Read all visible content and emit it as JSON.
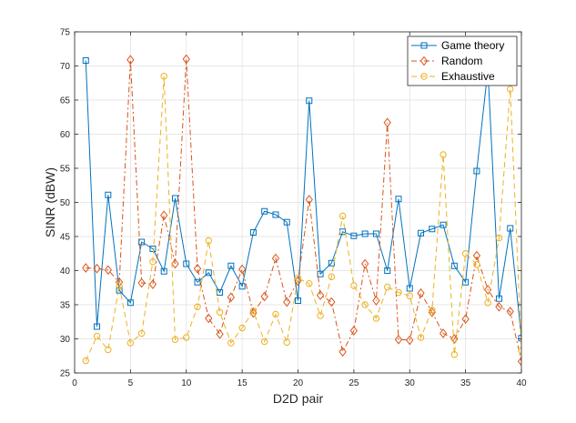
{
  "chart_data": {
    "type": "line",
    "title": "",
    "xlabel": "D2D pair",
    "ylabel": "SINR (dBW)",
    "xlim": [
      0,
      40
    ],
    "ylim": [
      25,
      75
    ],
    "xticks": [
      0,
      5,
      10,
      15,
      20,
      25,
      30,
      35,
      40
    ],
    "yticks": [
      25,
      30,
      35,
      40,
      45,
      50,
      55,
      60,
      65,
      70,
      75
    ],
    "xtick_labels": [
      "0",
      "5",
      "10",
      "15",
      "20",
      "25",
      "30",
      "35",
      "40"
    ],
    "ytick_labels": [
      "25",
      "30",
      "35",
      "40",
      "45",
      "50",
      "55",
      "60",
      "65",
      "70",
      "75"
    ],
    "grid": true,
    "legend_position": "top-right",
    "x": [
      1,
      2,
      3,
      4,
      5,
      6,
      7,
      8,
      9,
      10,
      11,
      12,
      13,
      14,
      15,
      16,
      17,
      18,
      19,
      20,
      21,
      22,
      23,
      24,
      25,
      26,
      27,
      28,
      29,
      30,
      31,
      32,
      33,
      34,
      35,
      36,
      37,
      38,
      39,
      40
    ],
    "series": [
      {
        "name": "Game theory",
        "color": "#0072BD",
        "line_style": "solid",
        "marker": "square",
        "values": [
          70.8,
          31.8,
          51.1,
          37.1,
          35.3,
          44.2,
          43.2,
          39.9,
          50.6,
          41.0,
          38.3,
          39.7,
          36.8,
          40.7,
          37.7,
          45.6,
          48.7,
          48.2,
          47.1,
          35.6,
          64.9,
          39.5,
          41.1,
          45.7,
          45.1,
          45.4,
          45.4,
          40.0,
          50.5,
          37.4,
          45.5,
          46.1,
          46.7,
          40.7,
          38.3,
          54.6,
          69.5,
          35.9,
          46.2,
          30.1
        ]
      },
      {
        "name": "Random",
        "color": "#D95319",
        "line_style": "dash-dot",
        "marker": "diamond",
        "values": [
          40.4,
          40.3,
          40.1,
          38.3,
          70.9,
          38.2,
          38.0,
          48.1,
          41.0,
          71.0,
          40.3,
          33.0,
          30.7,
          36.1,
          40.2,
          33.8,
          36.2,
          41.8,
          35.4,
          38.5,
          50.4,
          36.4,
          35.4,
          28.1,
          31.2,
          41.0,
          35.6,
          61.7,
          29.9,
          29.8,
          36.7,
          33.9,
          30.8,
          30.0,
          32.9,
          42.2,
          37.2,
          34.7,
          34.0,
          26.7
        ]
      },
      {
        "name": "Exhaustive",
        "color": "#EDB120",
        "line_style": "dashed",
        "marker": "circle",
        "values": [
          26.8,
          30.4,
          28.4,
          37.8,
          29.4,
          30.8,
          41.3,
          68.5,
          29.9,
          30.2,
          34.7,
          44.4,
          33.9,
          29.4,
          31.6,
          34.1,
          29.6,
          33.6,
          29.5,
          38.9,
          38.1,
          33.4,
          39.1,
          48.0,
          37.8,
          35.0,
          33.0,
          37.6,
          36.8,
          36.3,
          30.2,
          34.2,
          57.0,
          27.7,
          42.5,
          40.9,
          35.3,
          44.8,
          66.6,
          28.3
        ]
      }
    ]
  }
}
